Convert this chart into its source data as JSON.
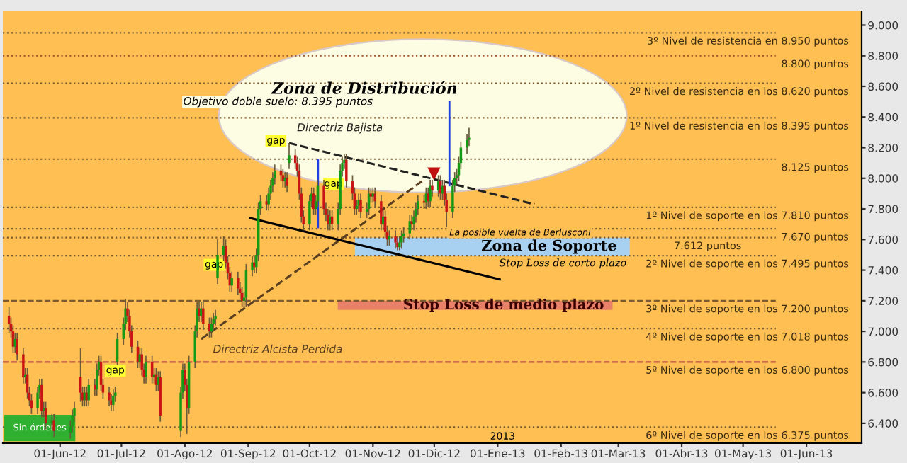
{
  "chart_data": {
    "type": "candlestick",
    "x": [
      "2012-05-07",
      "2012-05-08",
      "2012-05-09",
      "2012-05-10",
      "2012-05-11",
      "2012-05-14",
      "2012-05-15",
      "2012-05-16",
      "2012-05-17",
      "2012-05-18",
      "2012-05-21",
      "2012-05-22",
      "2012-05-23",
      "2012-05-24",
      "2012-05-25",
      "2012-05-28",
      "2012-05-29",
      "2012-06-06",
      "2012-06-07",
      "2012-06-08",
      "2012-06-11",
      "2012-06-12",
      "2012-06-13",
      "2012-06-14",
      "2012-06-15",
      "2012-06-18",
      "2012-06-19",
      "2012-06-20",
      "2012-06-21",
      "2012-06-22",
      "2012-06-25",
      "2012-06-26",
      "2012-06-27",
      "2012-06-28",
      "2012-06-29",
      "2012-07-02",
      "2012-07-03",
      "2012-07-04",
      "2012-07-05",
      "2012-07-06",
      "2012-07-09",
      "2012-07-10",
      "2012-07-11",
      "2012-07-12",
      "2012-07-13",
      "2012-07-16",
      "2012-07-17",
      "2012-07-18",
      "2012-07-19",
      "2012-07-20",
      "2012-07-30",
      "2012-07-31",
      "2012-08-01",
      "2012-08-02",
      "2012-08-03",
      "2012-08-06",
      "2012-08-07",
      "2012-08-08",
      "2012-08-09",
      "2012-08-10",
      "2012-08-13",
      "2012-08-14",
      "2012-08-15",
      "2012-08-16",
      "2012-08-17",
      "2012-08-20",
      "2012-08-21",
      "2012-08-22",
      "2012-08-23",
      "2012-08-24",
      "2012-08-27",
      "2012-08-28",
      "2012-08-29",
      "2012-08-30",
      "2012-08-31",
      "2012-09-03",
      "2012-09-04",
      "2012-09-05",
      "2012-09-06",
      "2012-09-07",
      "2012-09-10",
      "2012-09-11",
      "2012-09-12",
      "2012-09-13",
      "2012-09-14",
      "2012-09-17",
      "2012-09-18",
      "2012-09-19",
      "2012-09-20",
      "2012-09-21",
      "2012-09-24",
      "2012-09-25",
      "2012-09-26",
      "2012-09-27",
      "2012-09-28",
      "2012-10-01",
      "2012-10-02",
      "2012-10-03",
      "2012-10-04",
      "2012-10-05",
      "2012-10-08",
      "2012-10-09",
      "2012-10-10",
      "2012-10-11",
      "2012-10-12",
      "2012-10-15",
      "2012-10-16",
      "2012-10-17",
      "2012-10-18",
      "2012-10-19",
      "2012-10-22",
      "2012-10-23",
      "2012-10-24",
      "2012-10-25",
      "2012-10-26",
      "2012-10-29",
      "2012-10-30",
      "2012-10-31",
      "2012-11-01",
      "2012-11-02",
      "2012-11-05",
      "2012-11-06",
      "2012-11-07",
      "2012-11-08",
      "2012-11-09",
      "2012-11-12",
      "2012-11-13",
      "2012-11-14",
      "2012-11-15",
      "2012-11-16",
      "2012-11-19",
      "2012-11-20",
      "2012-11-21",
      "2012-11-22",
      "2012-11-23",
      "2012-11-26",
      "2012-11-27",
      "2012-11-28",
      "2012-11-29",
      "2012-11-30",
      "2012-12-03",
      "2012-12-04",
      "2012-12-05",
      "2012-12-06",
      "2012-12-07",
      "2012-12-10",
      "2012-12-11",
      "2012-12-12",
      "2012-12-13",
      "2012-12-14",
      "2012-12-17",
      "2012-12-18"
    ],
    "ohlc": [
      [
        7100,
        7160,
        6990,
        7050
      ],
      [
        7050,
        7090,
        6960,
        7000
      ],
      [
        7000,
        7040,
        6860,
        6900
      ],
      [
        6900,
        6990,
        6860,
        6950
      ],
      [
        6950,
        6990,
        6810,
        6850
      ],
      [
        6850,
        6890,
        6660,
        6700
      ],
      [
        6700,
        6760,
        6660,
        6720
      ],
      [
        6720,
        6760,
        6560,
        6600
      ],
      [
        6600,
        6640,
        6510,
        6550
      ],
      [
        6550,
        6590,
        6460,
        6500
      ],
      [
        6500,
        6640,
        6460,
        6600
      ],
      [
        6600,
        6690,
        6560,
        6650
      ],
      [
        6650,
        6690,
        6440,
        6480
      ],
      [
        6480,
        6540,
        6440,
        6500
      ],
      [
        6500,
        6540,
        6360,
        6400
      ],
      [
        6400,
        6460,
        6360,
        6420
      ],
      [
        6420,
        6460,
        6310,
        6350
      ],
      [
        6340,
        6420,
        6300,
        6380
      ],
      [
        6380,
        6490,
        6340,
        6450
      ],
      [
        6450,
        6540,
        6410,
        6500
      ],
      [
        6700,
        6890,
        6540,
        6600
      ],
      [
        6600,
        6640,
        6510,
        6550
      ],
      [
        6550,
        6640,
        6510,
        6600
      ],
      [
        6600,
        6640,
        6510,
        6550
      ],
      [
        6550,
        6690,
        6510,
        6650
      ],
      [
        6650,
        6690,
        6580,
        6620
      ],
      [
        6620,
        6790,
        6580,
        6750
      ],
      [
        6750,
        6840,
        6710,
        6800
      ],
      [
        6800,
        6840,
        6610,
        6650
      ],
      [
        6650,
        6690,
        6560,
        6600
      ],
      [
        6600,
        6640,
        6510,
        6550
      ],
      [
        6550,
        6590,
        6480,
        6520
      ],
      [
        6520,
        6620,
        6480,
        6580
      ],
      [
        6580,
        6640,
        6540,
        6600
      ],
      [
        6800,
        6990,
        6780,
        6950
      ],
      [
        6950,
        7090,
        6910,
        7050
      ],
      [
        7050,
        7210,
        7010,
        7150
      ],
      [
        7150,
        7190,
        7060,
        7100
      ],
      [
        7100,
        7140,
        6960,
        7000
      ],
      [
        7000,
        7040,
        6860,
        6900
      ],
      [
        6900,
        6940,
        6760,
        6800
      ],
      [
        6800,
        6890,
        6760,
        6850
      ],
      [
        6850,
        6890,
        6710,
        6750
      ],
      [
        6750,
        6790,
        6660,
        6700
      ],
      [
        6700,
        6840,
        6660,
        6800
      ],
      [
        6800,
        6840,
        6660,
        6700
      ],
      [
        6700,
        6760,
        6660,
        6720
      ],
      [
        6720,
        6760,
        6610,
        6650
      ],
      [
        6650,
        6740,
        6610,
        6700
      ],
      [
        6700,
        6740,
        6410,
        6450
      ],
      [
        6350,
        6640,
        6310,
        6600
      ],
      [
        6600,
        6790,
        6560,
        6750
      ],
      [
        6750,
        6790,
        6610,
        6650
      ],
      [
        6650,
        6690,
        6330,
        6500
      ],
      [
        6500,
        6840,
        6460,
        6800
      ],
      [
        6800,
        7040,
        6760,
        7000
      ],
      [
        7000,
        7190,
        6960,
        7150
      ],
      [
        7150,
        7190,
        7060,
        7100
      ],
      [
        7100,
        7190,
        7060,
        7150
      ],
      [
        7150,
        7190,
        7010,
        7050
      ],
      [
        7050,
        7090,
        6960,
        7000
      ],
      [
        7000,
        7090,
        6960,
        7050
      ],
      [
        7050,
        7120,
        7010,
        7080
      ],
      [
        7080,
        7140,
        7040,
        7100
      ],
      [
        7350,
        7600,
        7310,
        7500
      ],
      [
        7500,
        7620,
        7460,
        7560
      ],
      [
        7560,
        7600,
        7410,
        7450
      ],
      [
        7450,
        7490,
        7340,
        7380
      ],
      [
        7380,
        7420,
        7260,
        7300
      ],
      [
        7300,
        7390,
        7260,
        7350
      ],
      [
        7350,
        7390,
        7240,
        7280
      ],
      [
        7280,
        7320,
        7210,
        7250
      ],
      [
        7250,
        7290,
        7160,
        7200
      ],
      [
        7200,
        7260,
        7160,
        7220
      ],
      [
        7220,
        7440,
        7160,
        7400
      ],
      [
        7400,
        7490,
        7360,
        7450
      ],
      [
        7450,
        7490,
        7380,
        7420
      ],
      [
        7420,
        7540,
        7380,
        7500
      ],
      [
        7500,
        7840,
        7460,
        7800
      ],
      [
        7800,
        7890,
        7760,
        7850
      ],
      [
        7850,
        7890,
        7790,
        7830
      ],
      [
        7830,
        7940,
        7790,
        7900
      ],
      [
        7900,
        7990,
        7860,
        7950
      ],
      [
        7950,
        8040,
        7910,
        8000
      ],
      [
        8000,
        8090,
        7960,
        8050
      ],
      [
        8050,
        8090,
        7980,
        8020
      ],
      [
        8020,
        8060,
        7940,
        7980
      ],
      [
        7980,
        8040,
        7940,
        8000
      ],
      [
        8000,
        8040,
        7910,
        7950
      ],
      [
        8100,
        8230,
        8060,
        8150
      ],
      [
        8150,
        8190,
        8060,
        8100
      ],
      [
        8100,
        8140,
        8010,
        8050
      ],
      [
        8050,
        8090,
        7860,
        7900
      ],
      [
        7900,
        7940,
        7710,
        7750
      ],
      [
        7750,
        7790,
        7660,
        7700
      ],
      [
        7700,
        7890,
        7660,
        7850
      ],
      [
        7850,
        7940,
        7810,
        7900
      ],
      [
        7900,
        7940,
        7760,
        7800
      ],
      [
        7800,
        7890,
        7760,
        7850
      ],
      [
        7850,
        7990,
        7810,
        7950
      ],
      [
        7950,
        7990,
        7760,
        7800
      ],
      [
        7800,
        7840,
        7720,
        7760
      ],
      [
        7760,
        7800,
        7660,
        7700
      ],
      [
        7700,
        7790,
        7660,
        7750
      ],
      [
        7750,
        7790,
        7660,
        7700
      ],
      [
        7700,
        7840,
        7660,
        7800
      ],
      [
        7800,
        8090,
        7760,
        8050
      ],
      [
        8050,
        8140,
        8010,
        8100
      ],
      [
        8100,
        8160,
        8060,
        8120
      ],
      [
        8120,
        8160,
        7940,
        7980
      ],
      [
        7980,
        8020,
        7860,
        7900
      ],
      [
        7900,
        7940,
        7760,
        7800
      ],
      [
        7800,
        7860,
        7760,
        7820
      ],
      [
        7820,
        7900,
        7780,
        7860
      ],
      [
        7860,
        7900,
        7740,
        7780
      ],
      [
        7780,
        7840,
        7740,
        7800
      ],
      [
        7800,
        7940,
        7760,
        7900
      ],
      [
        7900,
        7940,
        7840,
        7880
      ],
      [
        7880,
        7940,
        7840,
        7900
      ],
      [
        7900,
        7940,
        7810,
        7850
      ],
      [
        7850,
        7890,
        7660,
        7700
      ],
      [
        7700,
        7790,
        7660,
        7750
      ],
      [
        7750,
        7790,
        7610,
        7650
      ],
      [
        7650,
        7690,
        7560,
        7600
      ],
      [
        7600,
        7660,
        7560,
        7620
      ],
      [
        7620,
        7660,
        7540,
        7580
      ],
      [
        7580,
        7620,
        7530,
        7550
      ],
      [
        7550,
        7620,
        7530,
        7580
      ],
      [
        7580,
        7660,
        7540,
        7620
      ],
      [
        7620,
        7680,
        7580,
        7640
      ],
      [
        7640,
        7760,
        7600,
        7720
      ],
      [
        7720,
        7760,
        7660,
        7700
      ],
      [
        7700,
        7790,
        7660,
        7750
      ],
      [
        7750,
        7840,
        7710,
        7800
      ],
      [
        7800,
        7890,
        7760,
        7850
      ],
      [
        7850,
        7890,
        7800,
        7840
      ],
      [
        7840,
        7940,
        7800,
        7900
      ],
      [
        7900,
        7940,
        7810,
        7850
      ],
      [
        7850,
        7990,
        7810,
        7950
      ],
      [
        7950,
        7990,
        7880,
        7920
      ],
      [
        7920,
        8020,
        7880,
        7980
      ],
      [
        7980,
        8020,
        7860,
        7900
      ],
      [
        7900,
        7990,
        7860,
        7950
      ],
      [
        7950,
        7990,
        7820,
        7860
      ],
      [
        7860,
        7900,
        7680,
        7780
      ],
      [
        7780,
        7990,
        7740,
        7950
      ],
      [
        7950,
        8040,
        7910,
        8000
      ],
      [
        8000,
        8060,
        7960,
        8020
      ],
      [
        8020,
        8140,
        7980,
        8100
      ],
      [
        8100,
        8240,
        8060,
        8200
      ],
      [
        8200,
        8290,
        8160,
        8250
      ],
      [
        8250,
        8330,
        8210,
        8264
      ]
    ],
    "series": [
      {
        "name": "Directriz Bajista",
        "type": "line",
        "line_style": "dashed",
        "color": "#222222",
        "x": [
          "2012-09-21",
          "2013-01-19"
        ],
        "values": [
          8230,
          7830
        ]
      },
      {
        "name": "Directriz Alcista Perdida",
        "type": "line",
        "line_style": "dashed",
        "color": "#5a4020",
        "x": [
          "2012-08-09",
          "2012-11-25"
        ],
        "values": [
          6950,
          7980
        ]
      },
      {
        "type": "line",
        "line_style": "solid",
        "color": "#000000",
        "x": [
          "2012-09-02",
          "2013-01-02"
        ],
        "values": [
          7740,
          7340
        ]
      }
    ],
    "xlim": [
      "2012-05-04",
      "2013-06-28"
    ],
    "xticks": [
      {
        "value": "2012-06-01",
        "label": "01-Jun-12"
      },
      {
        "value": "2012-07-01",
        "label": "01-Jul-12"
      },
      {
        "value": "2012-08-01",
        "label": "01-Ago-12"
      },
      {
        "value": "2012-09-01",
        "label": "01-Sep-12"
      },
      {
        "value": "2012-10-01",
        "label": "01-Oct-12"
      },
      {
        "value": "2012-11-01",
        "label": "01-Nov-12"
      },
      {
        "value": "2012-12-01",
        "label": "01-Dic-12"
      },
      {
        "value": "2013-01-01",
        "label": "01-Ene-13"
      },
      {
        "value": "2013-02-01",
        "label": "01-Feb-13"
      },
      {
        "value": "2013-03-01",
        "label": "01-Mar-13"
      },
      {
        "value": "2013-04-01",
        "label": "01-Abr-13"
      },
      {
        "value": "2013-05-01",
        "label": "01-May-13"
      },
      {
        "value": "2013-06-01",
        "label": "01-Jun-13"
      }
    ],
    "ylim": [
      6270,
      9090
    ],
    "yticks": [
      {
        "value": 6400,
        "label": "6.400"
      },
      {
        "value": 6600,
        "label": "6.600"
      },
      {
        "value": 6800,
        "label": "6.800"
      },
      {
        "value": 7000,
        "label": "7.000"
      },
      {
        "value": 7200,
        "label": "7.200"
      },
      {
        "value": 7400,
        "label": "7.400"
      },
      {
        "value": 7600,
        "label": "7.600"
      },
      {
        "value": 7800,
        "label": "7.800"
      },
      {
        "value": 8000,
        "label": "8.000"
      },
      {
        "value": 8200,
        "label": "8.200"
      },
      {
        "value": 8400,
        "label": "8.400"
      },
      {
        "value": 8600,
        "label": "8.600"
      },
      {
        "value": 8800,
        "label": "8.800"
      },
      {
        "value": 9000,
        "label": "9.000"
      }
    ],
    "ref_lines": [
      {
        "axis": "y",
        "value": 8950,
        "label": "3º Nivel de resistencia en 8.950 puntos",
        "line_style": "dotted",
        "color": "#7a5a30"
      },
      {
        "axis": "y",
        "value": 8800,
        "label": "8.800 puntos",
        "line_style": "dotted",
        "color": "#a0522d"
      },
      {
        "axis": "y",
        "value": 8620,
        "label": "2º Nivel de resistencia en los 8.620 puntos",
        "line_style": "dotted",
        "color": "#7a5a30"
      },
      {
        "axis": "y",
        "value": 8395,
        "label": "1º Nivel de resistencia en los 8.395 puntos",
        "line_style": "dotted",
        "color": "#7a5a30"
      },
      {
        "axis": "y",
        "value": 8125,
        "label": "8.125 puntos",
        "line_style": "dotted",
        "color": "#7a5a30"
      },
      {
        "axis": "y",
        "value": 7810,
        "label": "1º Nivel de soporte en los 7.810 puntos",
        "line_style": "dotted",
        "color": "#7a5a30"
      },
      {
        "axis": "y",
        "value": 7670,
        "label": "7.670 puntos",
        "line_style": "dotted",
        "color": "#7a5a30"
      },
      {
        "axis": "y",
        "value": 7612,
        "label": "7.612 puntos",
        "line_style": "dotted",
        "color": "#7a5a30"
      },
      {
        "axis": "y",
        "value": 7495,
        "label": "2º Nivel de soporte en los 7.495 puntos",
        "line_style": "dotted",
        "color": "#7a5a30"
      },
      {
        "axis": "y",
        "value": 7200,
        "label": "3º Nivel de soporte en los 7.200 puntos",
        "line_style": "dashed",
        "color": "#7a5a30"
      },
      {
        "axis": "y",
        "value": 7018,
        "label": "4º Nivel de soporte en los 7.018 puntos",
        "line_style": "dotted",
        "color": "#7a5a30"
      },
      {
        "axis": "y",
        "value": 6800,
        "label": "5º Nivel de soporte en los 6.800 puntos",
        "line_style": "dashed",
        "color": "#c0504d"
      },
      {
        "axis": "y",
        "value": 6375,
        "label": "6º Nivel de soporte en los 6.375 puntos",
        "line_style": "dotted",
        "color": "#7a5a30"
      }
    ],
    "bands": [
      {
        "axis": "y",
        "from": 7495,
        "to": 7612,
        "label": "Zona de Soporte",
        "color": "#a8d0f0"
      },
      {
        "axis": "y",
        "from": 7140,
        "to": 7200,
        "label": "Stop Loss de medio plazo",
        "color": "#e8806a"
      }
    ],
    "annotations": [
      {
        "text": "Zona de Distribución",
        "x": "2012-10-28",
        "y": 8580
      },
      "Objetivo doble suelo: 8.395 puntos",
      "Stop Loss de corto plazo",
      "La posible vuelta de Berlusconi",
      "gap",
      "gap",
      "gap",
      "gap",
      "Sin órdenes",
      "2013"
    ]
  }
}
